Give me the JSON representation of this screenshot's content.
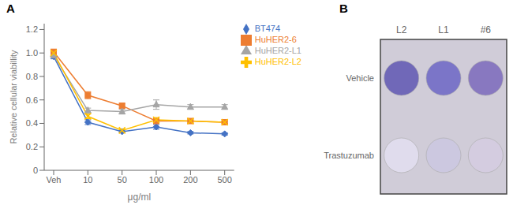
{
  "chart_data": [
    {
      "type": "line",
      "title": "A",
      "x_label": "μg/ml",
      "y_label": "Relative cellular viabillity",
      "categories": [
        "Veh",
        "10",
        "50",
        "100",
        "200",
        "500"
      ],
      "ylim": [
        0,
        1.25
      ],
      "yticks": [
        0,
        0.2,
        0.4,
        0.6,
        0.8,
        {
          "value": 1.0,
          "label": "1.0"
        },
        1.2
      ],
      "grid": false,
      "legend": "right",
      "series": [
        {
          "name": "BT474",
          "color": "#4472C4",
          "marker": "diamond",
          "values": [
            0.97,
            0.41,
            0.33,
            0.37,
            0.32,
            0.31
          ],
          "yerr": [
            0.02,
            0.02,
            0.01,
            0.02,
            0.01,
            0.01
          ]
        },
        {
          "name": "HuHER2-6",
          "color": "#ED7D31",
          "marker": "square",
          "values": [
            1.01,
            0.64,
            0.55,
            0.42,
            0.42,
            0.41
          ],
          "yerr": [
            0.02,
            0.03,
            0.02,
            0.02,
            0.02,
            0.01
          ]
        },
        {
          "name": "HuHER2-L1",
          "color": "#A5A5A5",
          "marker": "triangle",
          "values": [
            0.98,
            0.51,
            0.5,
            0.56,
            0.54,
            0.54
          ],
          "yerr": [
            0.02,
            0.02,
            0.02,
            0.04,
            0.02,
            0.02
          ]
        },
        {
          "name": "HuHER2-L2",
          "color": "#FFC000",
          "marker": "x",
          "values": [
            1.0,
            0.46,
            0.34,
            0.43,
            0.42,
            0.41
          ],
          "yerr": [
            0.02,
            0.02,
            0.01,
            0.02,
            0.01,
            0.01
          ]
        }
      ]
    },
    {
      "type": "plate",
      "title": "B",
      "categories": [
        "L2",
        "L1",
        "#6"
      ],
      "color": "#d0ccd8",
      "series": [
        {
          "name": "Vehicle",
          "colors": [
            "#7068b8",
            "#7b75c8",
            "#8878c0"
          ]
        },
        {
          "name": "Trastuzumab",
          "colors": [
            "#e0dced",
            "#ccc8e0",
            "#d4cce0"
          ]
        }
      ]
    }
  ]
}
